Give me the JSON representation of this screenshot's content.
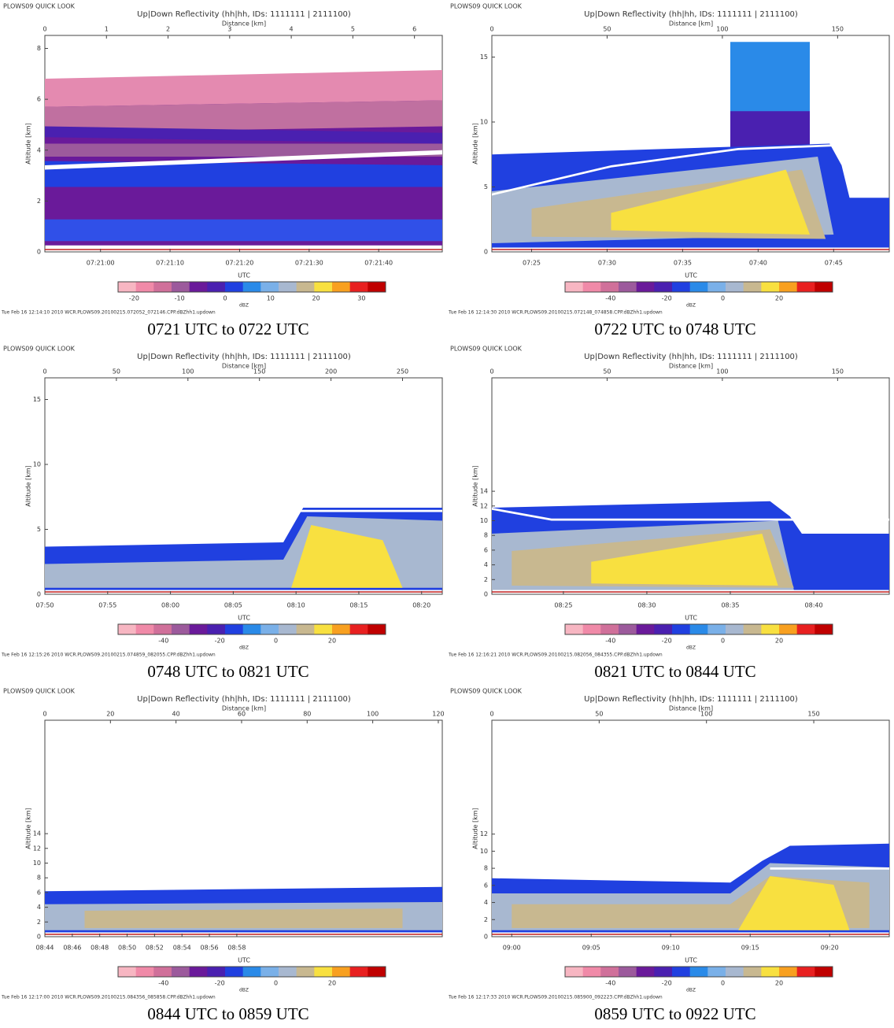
{
  "panels": [
    {
      "header": "PLOWS09 QUICK LOOK",
      "title": "Up|Down Reflectivity (hh|hh, IDs: 1111111 | 2111100)",
      "top_axis_label": "Distance [km]",
      "top_ticks": [
        "0",
        "1",
        "2",
        "3",
        "4",
        "5",
        "6"
      ],
      "y_axis_label": "Altitude [km]",
      "y_ticks": [
        "0",
        "2",
        "4",
        "6",
        "8"
      ],
      "x_axis_label": "UTC",
      "x_ticks": [
        "07:21:00",
        "07:21:10",
        "07:21:20",
        "07:21:30",
        "07:21:40"
      ],
      "colorbar_ticks": [
        "-20",
        "-10",
        "0",
        "10",
        "20",
        "30"
      ],
      "colorbar_unit": "dBZ",
      "footer": "Tue Feb 16 12:14:10 2010 WCR.PLOWS09.20100215.072052_072146.CPP.dBZhh1.updown",
      "caption": "0721 UTC to 0722 UTC"
    },
    {
      "header": "PLOWS09 QUICK LOOK",
      "title": "Up|Down Reflectivity (hh|hh, IDs: 1111111 | 2111100)",
      "top_axis_label": "Distance [km]",
      "top_ticks": [
        "0",
        "50",
        "100",
        "150"
      ],
      "y_axis_label": "Altitude [km]",
      "y_ticks": [
        "0",
        "5",
        "10",
        "15"
      ],
      "x_axis_label": "UTC",
      "x_ticks": [
        "07:25",
        "07:30",
        "07:35",
        "07:40",
        "07:45"
      ],
      "colorbar_ticks": [
        "-40",
        "-20",
        "0",
        "20"
      ],
      "colorbar_unit": "dBZ",
      "footer": "Tue Feb 16 12:14:30 2010 WCR.PLOWS09.20100215.072148_074858.CPP.dBZhh1.updown",
      "caption": "0722 UTC to 0748 UTC"
    },
    {
      "header": "PLOWS09 QUICK LOOK",
      "title": "Up|Down Reflectivity (hh|hh, IDs: 1111111 | 2111100)",
      "top_axis_label": "Distance [km]",
      "top_ticks": [
        "0",
        "50",
        "100",
        "150",
        "200",
        "250"
      ],
      "y_axis_label": "Altitude [km]",
      "y_ticks": [
        "0",
        "5",
        "10",
        "15"
      ],
      "x_axis_label": "UTC",
      "x_ticks": [
        "07:50",
        "07:55",
        "08:00",
        "08:05",
        "08:10",
        "08:15",
        "08:20"
      ],
      "colorbar_ticks": [
        "-40",
        "-20",
        "0",
        "20"
      ],
      "colorbar_unit": "dBZ",
      "footer": "Tue Feb 16 12:15:26 2010 WCR.PLOWS09.20100215.074859_082055.CPP.dBZhh1.updown",
      "caption": "0748 UTC to 0821 UTC"
    },
    {
      "header": "PLOWS09 QUICK LOOK",
      "title": "Up|Down Reflectivity (hh|hh, IDs: 1111111 | 2111100)",
      "top_axis_label": "Distance [km]",
      "top_ticks": [
        "0",
        "50",
        "100",
        "150"
      ],
      "y_axis_label": "Altitude [km]",
      "y_ticks": [
        "0",
        "2",
        "4",
        "6",
        "8",
        "10",
        "12",
        "14"
      ],
      "x_axis_label": "UTC",
      "x_ticks": [
        "08:25",
        "08:30",
        "08:35",
        "08:40"
      ],
      "colorbar_ticks": [
        "-40",
        "-20",
        "0",
        "20"
      ],
      "colorbar_unit": "dBZ",
      "footer": "Tue Feb 16 12:16:21 2010 WCR.PLOWS09.20100215.082056_084355.CPP.dBZhh1.updown",
      "caption": "0821 UTC to 0844 UTC"
    },
    {
      "header": "PLOWS09 QUICK LOOK",
      "title": "Up|Down Reflectivity (hh|hh, IDs: 1111111 | 2111100)",
      "top_axis_label": "Distance [km]",
      "top_ticks": [
        "0",
        "20",
        "40",
        "60",
        "80",
        "100",
        "120"
      ],
      "y_axis_label": "Altitude [km]",
      "y_ticks": [
        "0",
        "2",
        "4",
        "6",
        "8",
        "10",
        "12",
        "14"
      ],
      "x_axis_label": "UTC",
      "x_ticks": [
        "08:44",
        "08:46",
        "08:48",
        "08:50",
        "08:52",
        "08:54",
        "08:56",
        "08:58"
      ],
      "colorbar_ticks": [
        "-40",
        "-20",
        "0",
        "20"
      ],
      "colorbar_unit": "dBZ",
      "footer": "Tue Feb 16 12:17:00 2010 WCR.PLOWS09.20100215.084356_085858.CPP.dBZhh1.updown",
      "caption": "0844 UTC to 0859 UTC"
    },
    {
      "header": "PLOWS09 QUICK LOOK",
      "title": "Up|Down Reflectivity (hh|hh, IDs: 1111111 | 2111100)",
      "top_axis_label": "Distance [km]",
      "top_ticks": [
        "0",
        "50",
        "100",
        "150"
      ],
      "y_axis_label": "Altitude [km]",
      "y_ticks": [
        "0",
        "2",
        "4",
        "6",
        "8",
        "10",
        "12"
      ],
      "x_axis_label": "UTC",
      "x_ticks": [
        "09:00",
        "09:05",
        "09:10",
        "09:15",
        "09:20"
      ],
      "colorbar_ticks": [
        "-40",
        "-20",
        "0",
        "20"
      ],
      "colorbar_unit": "dBZ",
      "footer": "Tue Feb 16 12:17:33 2010 WCR.PLOWS09.20100215.085900_092223.CPP.dBZhh1.updown",
      "caption": "0859 UTC to 0922 UTC"
    }
  ]
}
